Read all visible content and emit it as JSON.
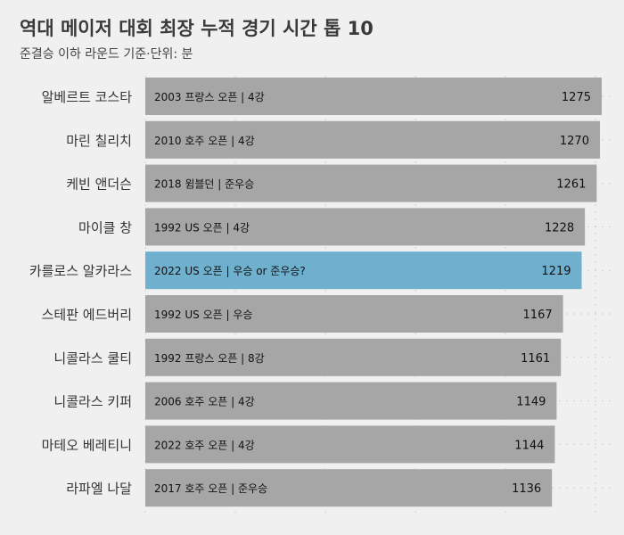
{
  "header": {
    "title": "역대 메이저 대회 최장 누적 경기 시간 톱 10",
    "subtitle": "준결승 이하 라운드 기준·단위: 분"
  },
  "colors": {
    "background": "#f0f0f0",
    "bar": "#a6a6a6",
    "highlight": "#6fb0cf",
    "grid": "#cfcfcf"
  },
  "chart_data": {
    "type": "bar",
    "orientation": "horizontal",
    "title": "역대 메이저 대회 최장 누적 경기 시간 톱 10",
    "subtitle": "준결승 이하 라운드 기준·단위: 분",
    "grid": true,
    "highlight_index": 4,
    "categories": [
      "알베르트 코스타",
      "마린 칠리치",
      "케빈 앤더슨",
      "마이클 창",
      "카를로스 알카라스",
      "스테판 에드버리",
      "니콜라스 쿨티",
      "니콜라스 키퍼",
      "마테오 베레티니",
      "라파엘 나달"
    ],
    "notes": [
      "2003 프랑스 오픈 | 4강",
      "2010 호주 오픈 | 4강",
      "2018 윔블던 | 준우승",
      "1992 US 오픈 | 4강",
      "2022 US 오픈 | 우승 or 준우승?",
      "1992 US 오픈 | 우승",
      "1992 프랑스 오픈 | 8강",
      "2006 호주 오픈 | 4강",
      "2022 호주 오픈 | 4강",
      "2017 호주 오픈 | 준우승"
    ],
    "values": [
      1275,
      1270,
      1261,
      1228,
      1219,
      1167,
      1161,
      1149,
      1144,
      1136
    ]
  }
}
